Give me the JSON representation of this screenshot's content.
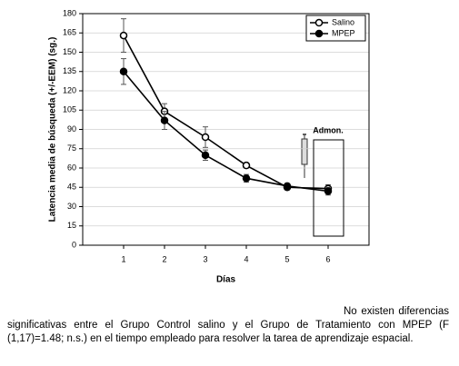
{
  "chart_data": {
    "type": "line",
    "ylabel": "Latencia media de búsqueda (+/-EEM) (sg.)",
    "xlabel": "Días",
    "x": [
      1,
      2,
      3,
      4,
      5,
      6
    ],
    "xlim": [
      0,
      7
    ],
    "xticks": [
      1,
      2,
      3,
      4,
      5,
      6
    ],
    "ylim": [
      0,
      180
    ],
    "yticks": [
      0,
      15,
      30,
      45,
      60,
      75,
      90,
      105,
      120,
      135,
      150,
      165,
      180
    ],
    "grid": true,
    "legend": "upper right",
    "series": [
      {
        "name": "Salino",
        "color": "#000000",
        "marker": "open",
        "values": [
          163,
          104,
          84,
          62,
          45,
          44
        ],
        "errors": [
          13,
          6,
          8,
          2,
          2,
          3
        ]
      },
      {
        "name": "MPEP",
        "color": "#000000",
        "marker": "filled",
        "values": [
          135,
          97,
          70,
          52,
          46,
          42
        ],
        "errors": [
          10,
          7,
          4,
          3,
          2,
          3
        ]
      }
    ],
    "annotation": "Admon."
  },
  "caption": "No existen diferencias significativas entre el Grupo Control salino y el Grupo de Tratamiento con MPEP (F (1,17)=1.48; n.s.) en el tiempo empleado para resolver la tarea de aprendizaje espacial."
}
